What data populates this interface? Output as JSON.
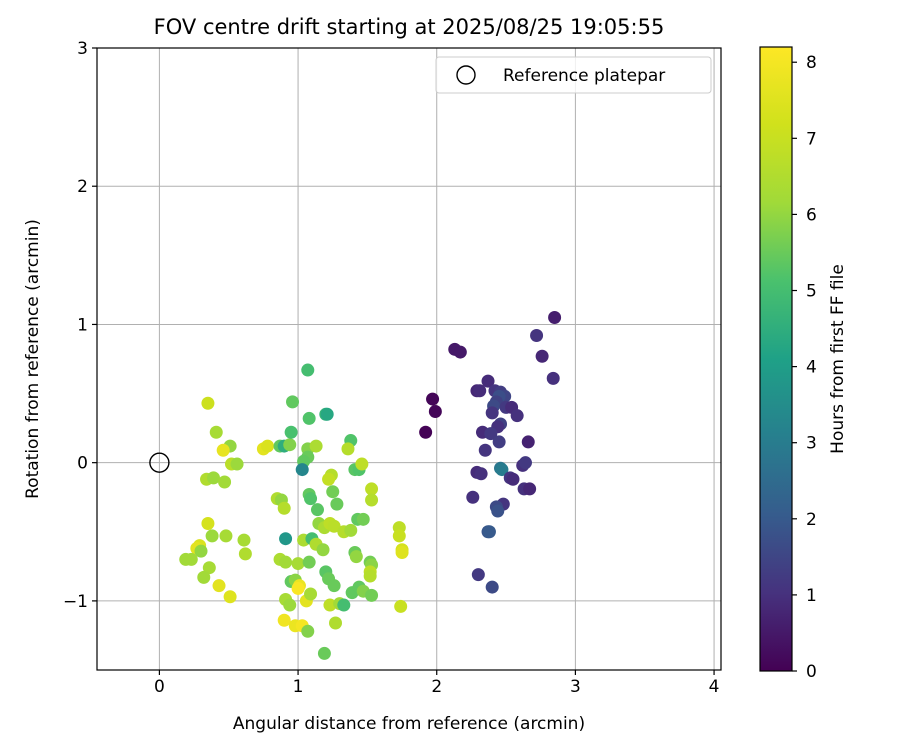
{
  "chart_data": {
    "type": "scatter",
    "title": "FOV centre drift starting at 2025/08/25 19:05:55",
    "xlabel": "Angular distance from reference (arcmin)",
    "ylabel": "Rotation from reference (arcmin)",
    "xlim": [
      -0.45,
      4.05
    ],
    "ylim": [
      -1.5,
      3.0
    ],
    "x_ticks": [
      0,
      1,
      2,
      3,
      4
    ],
    "y_ticks": [
      -1,
      0,
      1,
      2,
      3
    ],
    "grid": true,
    "legend": {
      "placement": "top-right",
      "entries": [
        "Reference platepar"
      ]
    },
    "reference_point": {
      "x": 0,
      "y": 0
    },
    "colorbar": {
      "label": "Hours from first FF file",
      "colormap": "viridis",
      "range": [
        0,
        8.2
      ],
      "ticks": [
        0,
        1,
        2,
        3,
        4,
        5,
        6,
        7,
        8
      ]
    },
    "series": [
      {
        "points": [
          {
            "x": 1.92,
            "y": 0.22,
            "c": 0.05
          },
          {
            "x": 1.97,
            "y": 0.46,
            "c": 0.1
          },
          {
            "x": 1.99,
            "y": 0.37,
            "c": 0.1
          },
          {
            "x": 2.13,
            "y": 0.82,
            "c": 0.5
          },
          {
            "x": 2.17,
            "y": 0.8,
            "c": 0.5
          },
          {
            "x": 2.85,
            "y": 1.05,
            "c": 0.6
          },
          {
            "x": 2.76,
            "y": 0.77,
            "c": 0.8
          },
          {
            "x": 2.72,
            "y": 0.92,
            "c": 1.1
          },
          {
            "x": 2.84,
            "y": 0.61,
            "c": 1.0
          },
          {
            "x": 2.37,
            "y": 0.59,
            "c": 0.9
          },
          {
            "x": 2.29,
            "y": 0.52,
            "c": 0.8
          },
          {
            "x": 2.31,
            "y": 0.52,
            "c": 0.9
          },
          {
            "x": 2.42,
            "y": 0.52,
            "c": 1.1
          },
          {
            "x": 2.46,
            "y": 0.51,
            "c": 1.3
          },
          {
            "x": 2.49,
            "y": 0.48,
            "c": 1.5
          },
          {
            "x": 2.45,
            "y": 0.48,
            "c": 1.7
          },
          {
            "x": 2.43,
            "y": 0.44,
            "c": 1.4
          },
          {
            "x": 2.41,
            "y": 0.41,
            "c": 1.6
          },
          {
            "x": 2.5,
            "y": 0.4,
            "c": 1.2
          },
          {
            "x": 2.54,
            "y": 0.4,
            "c": 0.9
          },
          {
            "x": 2.58,
            "y": 0.34,
            "c": 1.0
          },
          {
            "x": 2.4,
            "y": 0.36,
            "c": 1.1
          },
          {
            "x": 2.46,
            "y": 0.28,
            "c": 1.4
          },
          {
            "x": 2.44,
            "y": 0.26,
            "c": 1.0
          },
          {
            "x": 2.33,
            "y": 0.22,
            "c": 0.9
          },
          {
            "x": 2.39,
            "y": 0.21,
            "c": 1.2
          },
          {
            "x": 2.66,
            "y": 0.15,
            "c": 0.7
          },
          {
            "x": 2.45,
            "y": 0.15,
            "c": 1.3
          },
          {
            "x": 2.35,
            "y": 0.09,
            "c": 1.1
          },
          {
            "x": 2.62,
            "y": -0.02,
            "c": 1.0
          },
          {
            "x": 2.64,
            "y": 0.0,
            "c": 1.2
          },
          {
            "x": 2.29,
            "y": -0.07,
            "c": 0.9
          },
          {
            "x": 2.32,
            "y": -0.08,
            "c": 1.0
          },
          {
            "x": 2.46,
            "y": -0.04,
            "c": 2.8
          },
          {
            "x": 2.47,
            "y": -0.05,
            "c": 3.0
          },
          {
            "x": 2.53,
            "y": -0.11,
            "c": 1.1
          },
          {
            "x": 2.55,
            "y": -0.12,
            "c": 0.9
          },
          {
            "x": 2.63,
            "y": -0.19,
            "c": 1.0
          },
          {
            "x": 2.67,
            "y": -0.19,
            "c": 0.8
          },
          {
            "x": 2.26,
            "y": -0.25,
            "c": 1.0
          },
          {
            "x": 2.48,
            "y": -0.3,
            "c": 1.1
          },
          {
            "x": 2.43,
            "y": -0.32,
            "c": 1.6
          },
          {
            "x": 2.44,
            "y": -0.35,
            "c": 1.8
          },
          {
            "x": 2.37,
            "y": -0.5,
            "c": 1.9
          },
          {
            "x": 2.38,
            "y": -0.5,
            "c": 2.0
          },
          {
            "x": 2.3,
            "y": -0.81,
            "c": 1.2
          },
          {
            "x": 2.4,
            "y": -0.9,
            "c": 1.6
          },
          {
            "x": 0.35,
            "y": 0.43,
            "c": 7.1
          },
          {
            "x": 0.41,
            "y": 0.22,
            "c": 6.3
          },
          {
            "x": 0.51,
            "y": 0.12,
            "c": 6.0
          },
          {
            "x": 0.46,
            "y": 0.09,
            "c": 7.7
          },
          {
            "x": 0.75,
            "y": 0.1,
            "c": 7.6
          },
          {
            "x": 0.78,
            "y": 0.12,
            "c": 7.4
          },
          {
            "x": 0.87,
            "y": 0.12,
            "c": 5.4
          },
          {
            "x": 0.9,
            "y": 0.12,
            "c": 4.5
          },
          {
            "x": 0.94,
            "y": 0.13,
            "c": 5.8
          },
          {
            "x": 0.95,
            "y": 0.22,
            "c": 5.1
          },
          {
            "x": 0.96,
            "y": 0.44,
            "c": 5.4
          },
          {
            "x": 1.07,
            "y": 0.67,
            "c": 5.0
          },
          {
            "x": 1.08,
            "y": 0.32,
            "c": 5.2
          },
          {
            "x": 1.2,
            "y": 0.35,
            "c": 4.7
          },
          {
            "x": 1.21,
            "y": 0.35,
            "c": 4.3
          },
          {
            "x": 1.38,
            "y": 0.16,
            "c": 5.2
          },
          {
            "x": 1.07,
            "y": 0.1,
            "c": 5.8
          },
          {
            "x": 1.07,
            "y": 0.04,
            "c": 5.5
          },
          {
            "x": 1.04,
            "y": 0.01,
            "c": 5.4
          },
          {
            "x": 1.03,
            "y": -0.05,
            "c": 3.3
          },
          {
            "x": 1.13,
            "y": 0.12,
            "c": 6.4
          },
          {
            "x": 1.36,
            "y": 0.1,
            "c": 6.6
          },
          {
            "x": 1.41,
            "y": -0.05,
            "c": 5.3
          },
          {
            "x": 1.44,
            "y": -0.05,
            "c": 5.2
          },
          {
            "x": 1.46,
            "y": -0.01,
            "c": 6.8
          },
          {
            "x": 1.24,
            "y": -0.09,
            "c": 6.6
          },
          {
            "x": 1.22,
            "y": -0.12,
            "c": 6.9
          },
          {
            "x": 1.53,
            "y": -0.19,
            "c": 6.8
          },
          {
            "x": 1.53,
            "y": -0.27,
            "c": 6.6
          },
          {
            "x": 0.52,
            "y": -0.01,
            "c": 6.7
          },
          {
            "x": 0.56,
            "y": -0.01,
            "c": 6.1
          },
          {
            "x": 0.34,
            "y": -0.12,
            "c": 6.5
          },
          {
            "x": 0.39,
            "y": -0.11,
            "c": 6.1
          },
          {
            "x": 0.47,
            "y": -0.14,
            "c": 6.2
          },
          {
            "x": 0.85,
            "y": -0.26,
            "c": 6.5
          },
          {
            "x": 0.88,
            "y": -0.27,
            "c": 6.0
          },
          {
            "x": 0.9,
            "y": -0.33,
            "c": 6.6
          },
          {
            "x": 1.08,
            "y": -0.23,
            "c": 5.4
          },
          {
            "x": 1.09,
            "y": -0.26,
            "c": 5.2
          },
          {
            "x": 1.14,
            "y": -0.34,
            "c": 5.3
          },
          {
            "x": 1.25,
            "y": -0.21,
            "c": 5.6
          },
          {
            "x": 1.28,
            "y": -0.3,
            "c": 5.5
          },
          {
            "x": 1.15,
            "y": -0.44,
            "c": 6.0
          },
          {
            "x": 1.19,
            "y": -0.47,
            "c": 6.4
          },
          {
            "x": 1.23,
            "y": -0.44,
            "c": 6.8
          },
          {
            "x": 1.26,
            "y": -0.46,
            "c": 6.7
          },
          {
            "x": 1.33,
            "y": -0.5,
            "c": 6.6
          },
          {
            "x": 1.38,
            "y": -0.49,
            "c": 6.2
          },
          {
            "x": 1.43,
            "y": -0.41,
            "c": 5.4
          },
          {
            "x": 1.47,
            "y": -0.41,
            "c": 5.6
          },
          {
            "x": 1.73,
            "y": -0.47,
            "c": 6.8
          },
          {
            "x": 1.73,
            "y": -0.53,
            "c": 7.0
          },
          {
            "x": 1.75,
            "y": -0.63,
            "c": 7.3
          },
          {
            "x": 1.75,
            "y": -0.65,
            "c": 7.5
          },
          {
            "x": 0.35,
            "y": -0.44,
            "c": 7.3
          },
          {
            "x": 0.38,
            "y": -0.53,
            "c": 6.1
          },
          {
            "x": 0.48,
            "y": -0.53,
            "c": 6.3
          },
          {
            "x": 0.29,
            "y": -0.6,
            "c": 7.4
          },
          {
            "x": 0.27,
            "y": -0.62,
            "c": 7.6
          },
          {
            "x": 0.3,
            "y": -0.64,
            "c": 6.0
          },
          {
            "x": 0.19,
            "y": -0.7,
            "c": 6.2
          },
          {
            "x": 0.23,
            "y": -0.7,
            "c": 6.2
          },
          {
            "x": 0.36,
            "y": -0.76,
            "c": 6.3
          },
          {
            "x": 0.32,
            "y": -0.83,
            "c": 6.2
          },
          {
            "x": 0.43,
            "y": -0.89,
            "c": 7.6
          },
          {
            "x": 0.51,
            "y": -0.97,
            "c": 7.5
          },
          {
            "x": 0.61,
            "y": -0.56,
            "c": 6.3
          },
          {
            "x": 0.62,
            "y": -0.66,
            "c": 6.5
          },
          {
            "x": 0.91,
            "y": -0.55,
            "c": 3.8
          },
          {
            "x": 0.87,
            "y": -0.7,
            "c": 6.4
          },
          {
            "x": 0.91,
            "y": -0.72,
            "c": 6.2
          },
          {
            "x": 1.0,
            "y": -0.73,
            "c": 6.3
          },
          {
            "x": 1.04,
            "y": -0.56,
            "c": 6.4
          },
          {
            "x": 1.1,
            "y": -0.55,
            "c": 5.0
          },
          {
            "x": 1.13,
            "y": -0.59,
            "c": 6.5
          },
          {
            "x": 1.18,
            "y": -0.63,
            "c": 6.0
          },
          {
            "x": 1.08,
            "y": -0.72,
            "c": 5.6
          },
          {
            "x": 1.2,
            "y": -0.79,
            "c": 5.3
          },
          {
            "x": 1.22,
            "y": -0.84,
            "c": 5.5
          },
          {
            "x": 1.26,
            "y": -0.89,
            "c": 5.5
          },
          {
            "x": 0.95,
            "y": -0.86,
            "c": 5.4
          },
          {
            "x": 0.98,
            "y": -0.85,
            "c": 5.9
          },
          {
            "x": 1.01,
            "y": -0.89,
            "c": 7.8
          },
          {
            "x": 1.0,
            "y": -0.91,
            "c": 8.1
          },
          {
            "x": 0.91,
            "y": -0.99,
            "c": 6.3
          },
          {
            "x": 0.94,
            "y": -1.03,
            "c": 6.1
          },
          {
            "x": 1.06,
            "y": -1.0,
            "c": 7.6
          },
          {
            "x": 1.09,
            "y": -0.95,
            "c": 6.3
          },
          {
            "x": 1.23,
            "y": -1.03,
            "c": 6.8
          },
          {
            "x": 1.3,
            "y": -1.02,
            "c": 6.2
          },
          {
            "x": 1.33,
            "y": -1.03,
            "c": 5.0
          },
          {
            "x": 0.9,
            "y": -1.14,
            "c": 7.9
          },
          {
            "x": 0.98,
            "y": -1.18,
            "c": 7.8
          },
          {
            "x": 1.03,
            "y": -1.18,
            "c": 8.0
          },
          {
            "x": 1.07,
            "y": -1.22,
            "c": 5.8
          },
          {
            "x": 1.27,
            "y": -1.16,
            "c": 6.5
          },
          {
            "x": 1.19,
            "y": -1.38,
            "c": 5.5
          },
          {
            "x": 1.39,
            "y": -0.94,
            "c": 5.4
          },
          {
            "x": 1.44,
            "y": -0.9,
            "c": 5.4
          },
          {
            "x": 1.47,
            "y": -0.93,
            "c": 5.8
          },
          {
            "x": 1.53,
            "y": -0.96,
            "c": 5.6
          },
          {
            "x": 1.41,
            "y": -0.65,
            "c": 5.5
          },
          {
            "x": 1.42,
            "y": -0.68,
            "c": 6.0
          },
          {
            "x": 1.52,
            "y": -0.72,
            "c": 5.6
          },
          {
            "x": 1.53,
            "y": -0.74,
            "c": 5.9
          },
          {
            "x": 1.52,
            "y": -0.79,
            "c": 6.8
          },
          {
            "x": 1.52,
            "y": -0.82,
            "c": 6.6
          },
          {
            "x": 1.74,
            "y": -1.04,
            "c": 7.0
          }
        ]
      }
    ]
  }
}
